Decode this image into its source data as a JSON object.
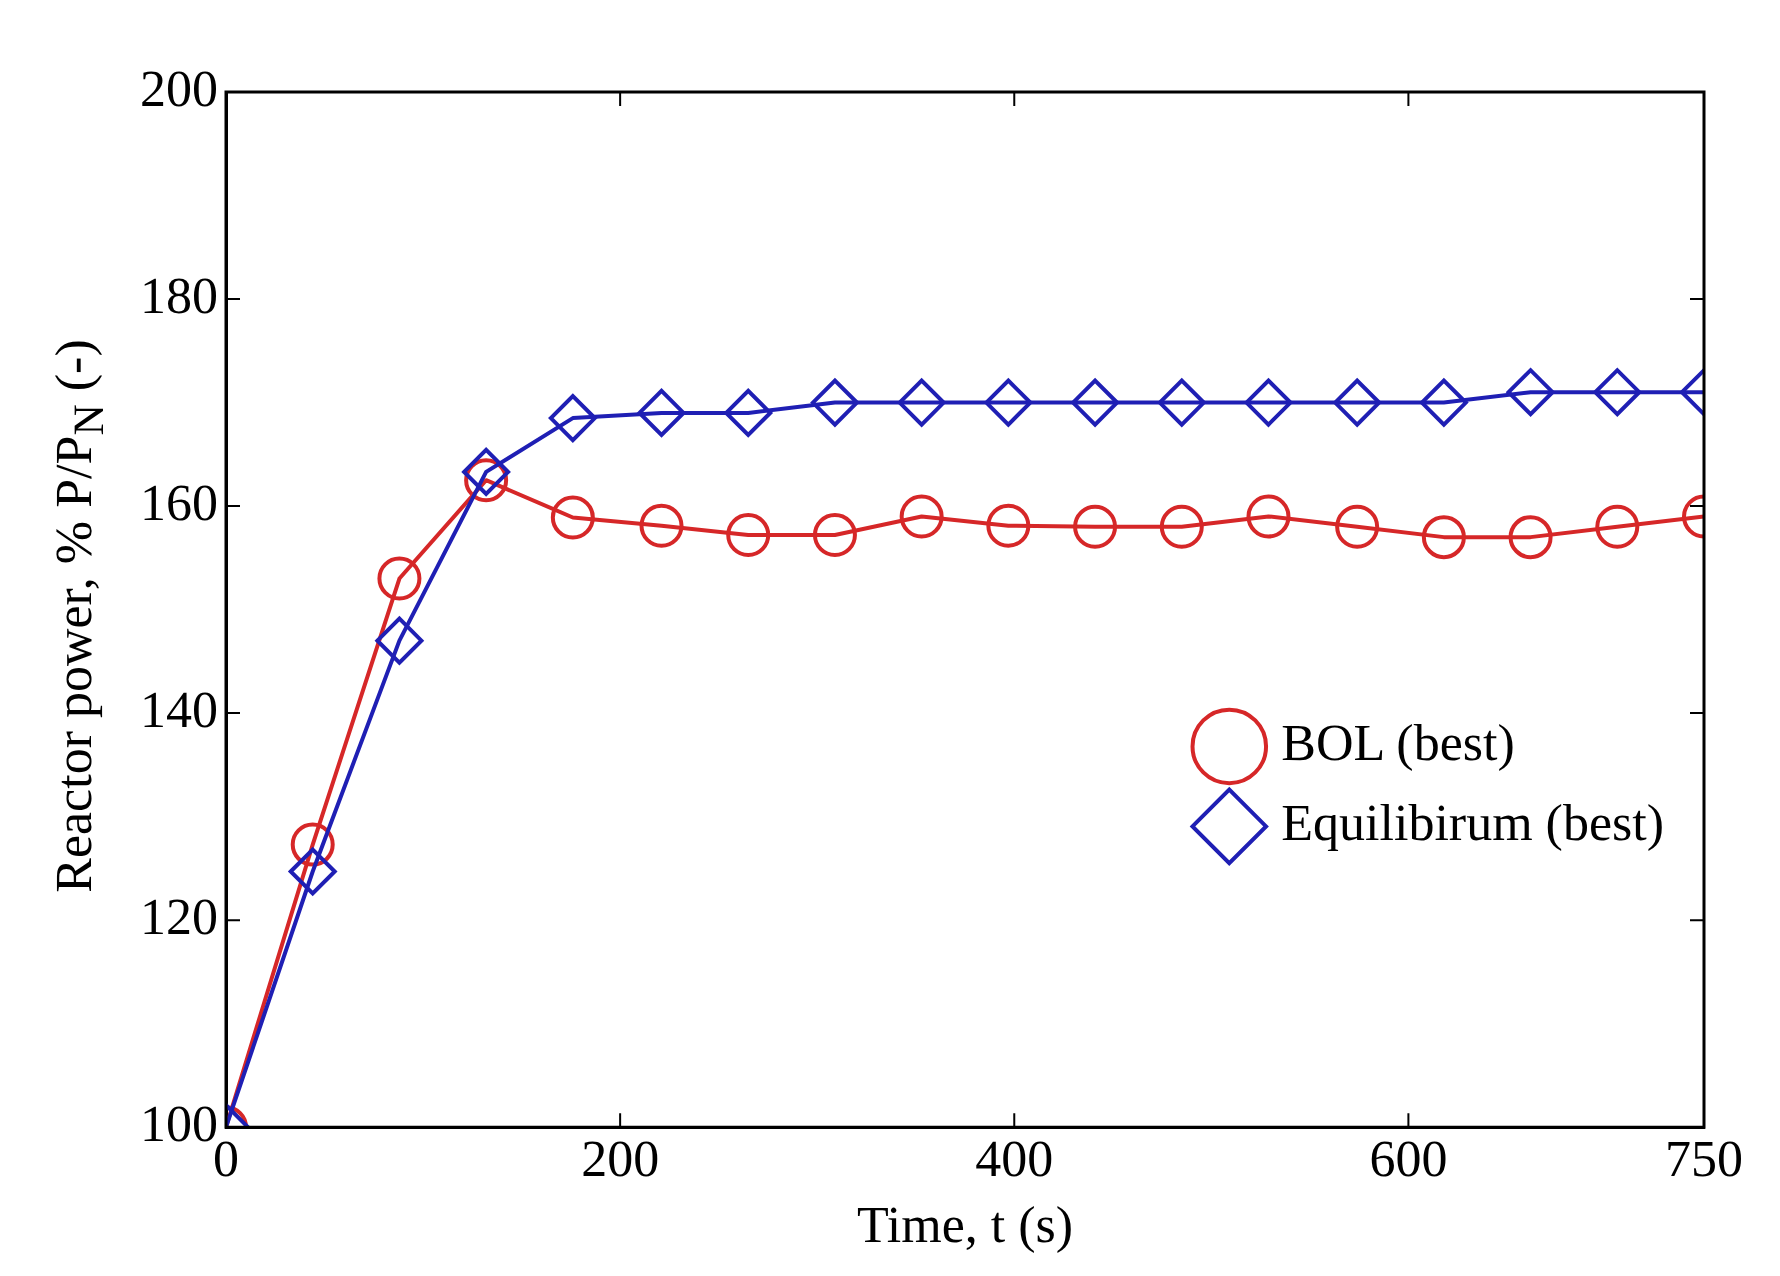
{
  "chart_data": {
    "type": "line",
    "xlabel": "Time, t (s)",
    "ylabel": "Reactor power, % P/P$_{N}$ (-)",
    "x": [
      0,
      44,
      88,
      132,
      176,
      221,
      265,
      309,
      353,
      397,
      441,
      485,
      529,
      574,
      618,
      662,
      706,
      750
    ],
    "series": [
      {
        "name": "BOL (best)",
        "color": "#d62728",
        "marker": "circle",
        "values": [
          100,
          127.3,
          153,
          162.5,
          158.9,
          158.1,
          157.2,
          157.2,
          159,
          158.1,
          158,
          158,
          159,
          158,
          157,
          157,
          158,
          159
        ]
      },
      {
        "name": "Equilibirum (best)",
        "color": "#1f1fb4",
        "marker": "diamond",
        "values": [
          100,
          124.7,
          147,
          163.3,
          168.5,
          169,
          169,
          170,
          170,
          170,
          170,
          170,
          170,
          170,
          170,
          171,
          171,
          171
        ]
      }
    ],
    "xlim": [
      0,
      750
    ],
    "xticks": [
      0,
      200,
      400,
      600,
      750
    ],
    "ylim": [
      100,
      200
    ],
    "yticks": [
      100,
      120,
      140,
      160,
      180,
      200
    ],
    "grid": false,
    "legend": "right",
    "line_style": "solid"
  }
}
